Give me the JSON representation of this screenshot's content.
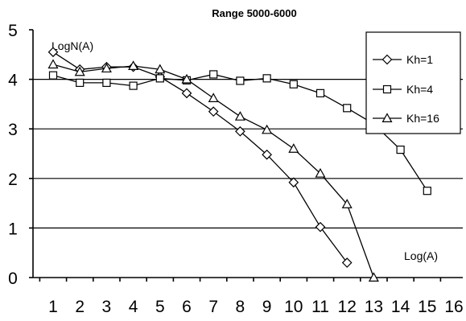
{
  "chart_data": {
    "type": "line",
    "title": "Range 5000-6000",
    "ylabel": "LogN(A)",
    "xlabel": "Log(A)",
    "x_ticks": [
      "1",
      "2",
      "3",
      "4",
      "5",
      "6",
      "7",
      "8",
      "9",
      "10",
      "11",
      "12",
      "13",
      "14",
      "15",
      "16"
    ],
    "y_ticks": [
      "0",
      "1",
      "2",
      "3",
      "4",
      "5"
    ],
    "xlim": [
      0.5,
      16
    ],
    "ylim": [
      0,
      5
    ],
    "grid": true,
    "legend_position": "top-right",
    "series": [
      {
        "name": "Kh=1",
        "marker": "diamond",
        "x": [
          1,
          2,
          3,
          4,
          5,
          6,
          7,
          8,
          9,
          10,
          11,
          12
        ],
        "y": [
          4.55,
          4.2,
          4.25,
          4.25,
          4.05,
          3.72,
          3.35,
          2.95,
          2.48,
          1.92,
          1.02,
          0.3
        ]
      },
      {
        "name": "Kh=4",
        "marker": "square",
        "x": [
          1,
          2,
          3,
          4,
          5,
          6,
          7,
          8,
          9,
          10,
          11,
          12,
          13,
          14,
          15
        ],
        "y": [
          4.08,
          3.93,
          3.93,
          3.87,
          4.02,
          3.98,
          4.1,
          3.97,
          4.02,
          3.9,
          3.72,
          3.42,
          3.1,
          2.58,
          1.75
        ]
      },
      {
        "name": "Kh=16",
        "marker": "triangle",
        "x": [
          1,
          2,
          3,
          4,
          5,
          6,
          7,
          8,
          9,
          10,
          11,
          12,
          13
        ],
        "y": [
          4.3,
          4.15,
          4.22,
          4.27,
          4.2,
          4.0,
          3.62,
          3.25,
          2.98,
          2.6,
          2.1,
          1.48,
          0.0
        ]
      }
    ]
  }
}
